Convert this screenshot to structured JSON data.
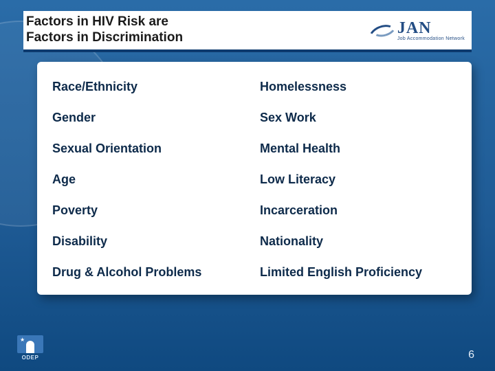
{
  "header": {
    "title_line1": "Factors in HIV Risk are",
    "title_line2": "Factors in Discrimination",
    "logo_main": "JAN",
    "logo_sub": "Job Accommodation Network"
  },
  "table": {
    "rows": [
      {
        "left": "Race/Ethnicity",
        "right": "Homelessness"
      },
      {
        "left": "Gender",
        "right": "Sex Work"
      },
      {
        "left": "Sexual Orientation",
        "right": "Mental Health"
      },
      {
        "left": "Age",
        "right": "Low Literacy"
      },
      {
        "left": "Poverty",
        "right": "Incarceration"
      },
      {
        "left": "Disability",
        "right": "Nationality"
      },
      {
        "left": "Drug & Alcohol Problems",
        "right": "Limited English Proficiency"
      }
    ]
  },
  "footer": {
    "logo_label": "ODEP",
    "page_number": "6"
  },
  "colors": {
    "header_underline": "#0d3a6e",
    "text_dark": "#0d2a4a",
    "bg_gradient_top": "#2a6ca8",
    "bg_gradient_bottom": "#0f4980"
  }
}
